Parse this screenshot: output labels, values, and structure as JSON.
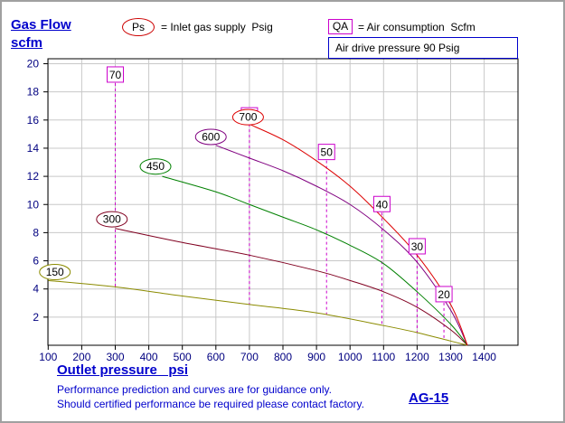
{
  "header": {
    "y_title_line1": "Gas Flow",
    "y_title_line2": "scfm",
    "ps_symbol": "Ps",
    "ps_legend": "= Inlet gas supply  Psig",
    "qa_symbol": "QA",
    "qa_legend": "= Air consumption  Scfm",
    "drive_pressure": "Air drive pressure  90 Psig"
  },
  "footer": {
    "x_title": "Outlet pressure   psi",
    "note_line1": "Performance prediction and curves are for guidance only.",
    "note_line2": "Should certified performance be required please contact factory.",
    "model": "AG-15"
  },
  "chart_data": {
    "type": "line",
    "xlabel": "Outlet pressure   psi",
    "ylabel": "Gas Flow scfm",
    "xlim": [
      0,
      1400
    ],
    "ylim": [
      0,
      20
    ],
    "x_ticks": [
      100,
      200,
      300,
      400,
      500,
      600,
      700,
      800,
      900,
      1000,
      1100,
      1200,
      1300,
      1400
    ],
    "y_ticks": [
      2,
      4,
      6,
      8,
      10,
      12,
      14,
      16,
      18,
      20
    ],
    "series": [
      {
        "name": "150",
        "color": "#8b8b00",
        "points": [
          [
            100,
            4.6
          ],
          [
            300,
            4.15
          ],
          [
            500,
            3.5
          ],
          [
            700,
            2.9
          ],
          [
            900,
            2.3
          ],
          [
            1100,
            1.4
          ],
          [
            1200,
            0.9
          ],
          [
            1300,
            0.3
          ],
          [
            1350,
            0
          ]
        ]
      },
      {
        "name": "300",
        "color": "#800020",
        "points": [
          [
            300,
            8.3
          ],
          [
            500,
            7.3
          ],
          [
            700,
            6.4
          ],
          [
            900,
            5.3
          ],
          [
            1000,
            4.6
          ],
          [
            1100,
            3.8
          ],
          [
            1200,
            2.7
          ],
          [
            1300,
            1.1
          ],
          [
            1350,
            0
          ]
        ]
      },
      {
        "name": "450",
        "color": "#008000",
        "points": [
          [
            440,
            12.0
          ],
          [
            600,
            10.9
          ],
          [
            700,
            10.0
          ],
          [
            800,
            9.1
          ],
          [
            900,
            8.2
          ],
          [
            1000,
            7.1
          ],
          [
            1100,
            5.8
          ],
          [
            1200,
            3.8
          ],
          [
            1300,
            1.5
          ],
          [
            1350,
            0
          ]
        ]
      },
      {
        "name": "600",
        "color": "#800080",
        "points": [
          [
            600,
            14.2
          ],
          [
            700,
            13.3
          ],
          [
            800,
            12.4
          ],
          [
            900,
            11.3
          ],
          [
            1000,
            10.0
          ],
          [
            1100,
            8.2
          ],
          [
            1200,
            5.9
          ],
          [
            1300,
            2.5
          ],
          [
            1350,
            0
          ]
        ]
      },
      {
        "name": "700",
        "color": "#dd0000",
        "points": [
          [
            700,
            15.7
          ],
          [
            800,
            14.6
          ],
          [
            900,
            13.1
          ],
          [
            1000,
            11.3
          ],
          [
            1100,
            9.0
          ],
          [
            1200,
            6.4
          ],
          [
            1300,
            2.9
          ],
          [
            1350,
            0
          ]
        ]
      }
    ],
    "ps_labels": [
      {
        "text": "150",
        "x": 120,
        "y": 5.2,
        "color": "#8b8b00"
      },
      {
        "text": "300",
        "x": 290,
        "y": 8.95,
        "color": "#800020"
      },
      {
        "text": "450",
        "x": 420,
        "y": 12.7,
        "color": "#008000"
      },
      {
        "text": "600",
        "x": 585,
        "y": 14.8,
        "color": "#800080"
      },
      {
        "text": "700",
        "x": 696,
        "y": 16.2,
        "color": "#dd0000"
      }
    ],
    "air_consumption": [
      {
        "qa": "70",
        "x": 300,
        "y_top": 19.2,
        "y_bottom": 4.1
      },
      {
        "qa": "60",
        "x": 700,
        "y_top": 16.3,
        "y_bottom": 2.9
      },
      {
        "qa": "50",
        "x": 930,
        "y_top": 13.7,
        "y_bottom": 2.2
      },
      {
        "qa": "40",
        "x": 1095,
        "y_top": 10.0,
        "y_bottom": 1.5
      },
      {
        "qa": "30",
        "x": 1200,
        "y_top": 7.0,
        "y_bottom": 0.9
      },
      {
        "qa": "20",
        "x": 1280,
        "y_top": 3.6,
        "y_bottom": 0.45
      }
    ],
    "grid": true
  }
}
